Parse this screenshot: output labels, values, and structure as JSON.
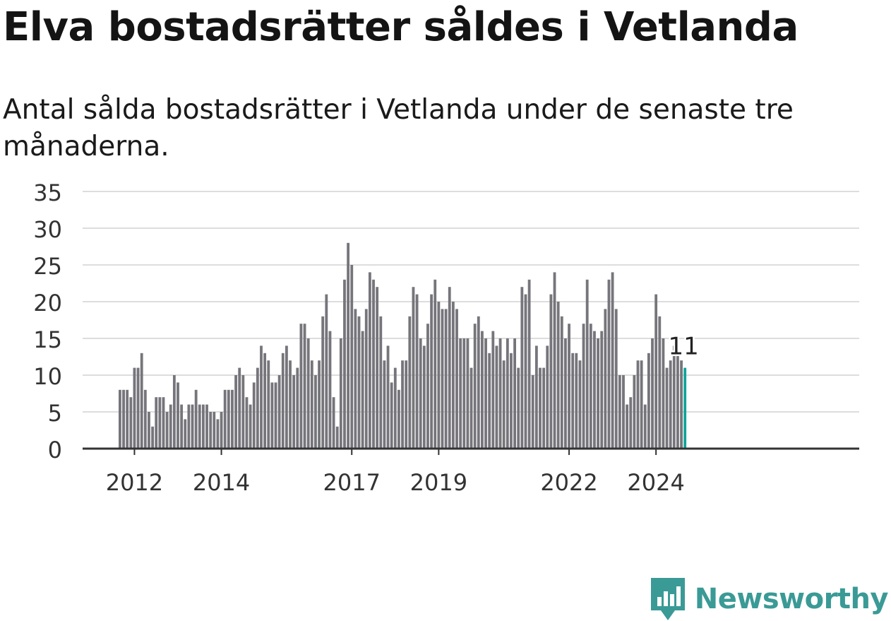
{
  "title": "Elva bostadsrätter såldes i Vetlanda",
  "subtitle": "Antal sålda bostadsrätter i Vetlanda under de senaste tre månaderna.",
  "brand": {
    "name": "Newsworthy",
    "color": "#3a9a96"
  },
  "colors": {
    "bar": "#76757b",
    "highlight": "#0fa39b",
    "grid": "#dddddd",
    "axis": "#333333"
  },
  "chart_data": {
    "type": "bar",
    "title": "Elva bostadsrätter såldes i Vetlanda",
    "subtitle": "Antal sålda bostadsrätter i Vetlanda under de senaste tre månaderna.",
    "xlabel": "",
    "ylabel": "",
    "ylim": [
      0,
      35
    ],
    "yticks": [
      "0",
      "5",
      "10",
      "15",
      "20",
      "25",
      "30",
      "35"
    ],
    "xticks": [
      "2012",
      "2014",
      "2017",
      "2019",
      "2022",
      "2024"
    ],
    "grid": true,
    "start_month": "2011-09",
    "values": [
      8,
      8,
      8,
      7,
      11,
      11,
      13,
      8,
      5,
      3,
      7,
      7,
      7,
      5,
      6,
      10,
      9,
      6,
      4,
      6,
      6,
      8,
      6,
      6,
      6,
      5,
      5,
      4,
      5,
      8,
      8,
      8,
      10,
      11,
      10,
      7,
      6,
      9,
      11,
      14,
      13,
      12,
      9,
      9,
      10,
      13,
      14,
      12,
      10,
      11,
      17,
      17,
      15,
      12,
      10,
      12,
      18,
      21,
      16,
      7,
      3,
      15,
      23,
      28,
      25,
      19,
      18,
      16,
      19,
      24,
      23,
      22,
      18,
      12,
      14,
      9,
      11,
      8,
      12,
      12,
      18,
      22,
      21,
      15,
      14,
      17,
      21,
      23,
      20,
      19,
      19,
      22,
      20,
      19,
      15,
      15,
      15,
      11,
      17,
      18,
      16,
      15,
      13,
      16,
      14,
      15,
      12,
      15,
      13,
      15,
      11,
      22,
      21,
      23,
      10,
      14,
      11,
      11,
      14,
      21,
      24,
      20,
      18,
      15,
      17,
      13,
      13,
      12,
      17,
      23,
      17,
      16,
      15,
      16,
      19,
      23,
      24,
      19,
      10,
      10,
      6,
      7,
      10,
      12,
      12,
      6,
      13,
      15,
      21,
      18,
      15,
      11,
      12,
      14,
      13,
      12,
      11
    ],
    "highlight": {
      "label": "11",
      "value": 11,
      "index": 156
    }
  }
}
